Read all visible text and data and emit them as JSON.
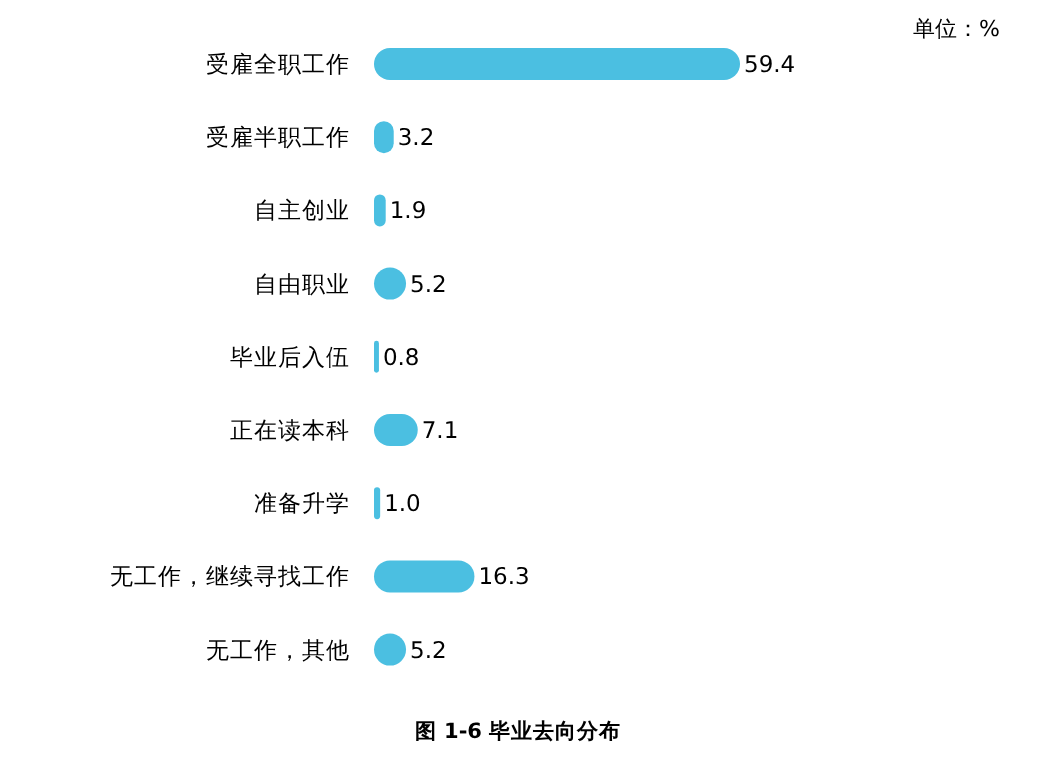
{
  "chart_data": {
    "type": "bar",
    "orientation": "horizontal",
    "title": "图 1-6  毕业去向分布",
    "annotations": [
      "单位：%"
    ],
    "categories": [
      "受雇全职工作",
      "受雇半职工作",
      "自主创业",
      "自由职业",
      "毕业后入伍",
      "正在读本科",
      "准备升学",
      "无工作，继续寻找工作",
      "无工作，其他"
    ],
    "values": [
      59.4,
      3.2,
      1.9,
      5.2,
      0.8,
      7.1,
      1.0,
      16.3,
      5.2
    ],
    "value_labels": [
      "59.4",
      "3.2",
      "1.9",
      "5.2",
      "0.8",
      "7.1",
      "1.0",
      "16.3",
      "5.2"
    ],
    "color": "#4bbfe1"
  }
}
